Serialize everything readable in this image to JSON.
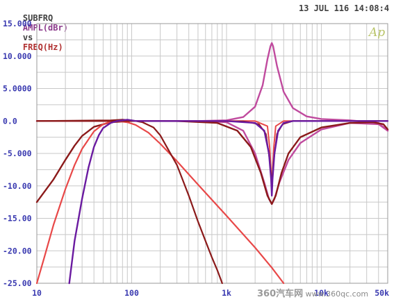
{
  "header": {
    "subfrq": "SUBFRQ",
    "y_quantity": "AMPL(dBr)",
    "vs": "vs",
    "x_quantity": "FREQ(Hz)",
    "date": "13 JUL 116 14:08:4",
    "colors": {
      "subfrq": "#404040",
      "y_quantity": "#8b3a8b",
      "vs": "#404040",
      "x_quantity": "#b03030"
    }
  },
  "logo": {
    "text": "Ap",
    "color": "#b9c46a"
  },
  "watermark": {
    "logo": "360汽车网",
    "url": "www.360qc.com"
  },
  "colors": {
    "grid": "#c8c8c8",
    "axis_labels": "#3a3ab0",
    "background": "#ffffff"
  },
  "chart_data": {
    "type": "line",
    "x_scale": "log",
    "xlim": [
      10,
      50000
    ],
    "ylim": [
      -25,
      15
    ],
    "grid": true,
    "y_ticks": [
      15,
      10,
      5,
      0,
      -5,
      -10,
      -15,
      -20,
      -25
    ],
    "y_tick_labels": [
      "15.000",
      "10.000",
      "5.0000",
      "0.0",
      "-5.000",
      "-10.00",
      "-15.00",
      "-20.00",
      "-25.00"
    ],
    "x_ticks": [
      10,
      100,
      1000,
      10000,
      50000
    ],
    "x_tick_labels": [
      "10",
      "100",
      "1k",
      "10k",
      "50k"
    ],
    "series": [
      {
        "color": "#c04a9e",
        "width": 2.4,
        "points": [
          [
            10,
            0
          ],
          [
            500,
            0
          ],
          [
            1000,
            0.1
          ],
          [
            1500,
            0.6
          ],
          [
            2000,
            2.2
          ],
          [
            2400,
            5.5
          ],
          [
            2700,
            9.5
          ],
          [
            2900,
            11.5
          ],
          [
            3000,
            12
          ],
          [
            3100,
            11.5
          ],
          [
            3400,
            8.5
          ],
          [
            4000,
            4.5
          ],
          [
            5000,
            2.0
          ],
          [
            7000,
            0.7
          ],
          [
            10000,
            0.3
          ],
          [
            20000,
            0.1
          ],
          [
            40000,
            -0.3
          ],
          [
            50000,
            -1.5
          ]
        ]
      },
      {
        "color": "#c04a9e",
        "width": 2.4,
        "points": [
          [
            10,
            0
          ],
          [
            500,
            0
          ],
          [
            1000,
            -0.2
          ],
          [
            1500,
            -1.5
          ],
          [
            2000,
            -5
          ],
          [
            2500,
            -9.5
          ],
          [
            2800,
            -12
          ],
          [
            3000,
            -12.8
          ],
          [
            3200,
            -12
          ],
          [
            3600,
            -9.5
          ],
          [
            4500,
            -6
          ],
          [
            6000,
            -3.4
          ],
          [
            10000,
            -1.3
          ],
          [
            20000,
            -0.3
          ],
          [
            40000,
            -0.5
          ],
          [
            50000,
            -1.5
          ]
        ]
      },
      {
        "color": "#8b1a1a",
        "width": 2.4,
        "points": [
          [
            10,
            -12.5
          ],
          [
            15,
            -9
          ],
          [
            20,
            -6
          ],
          [
            25,
            -3.8
          ],
          [
            30,
            -2.3
          ],
          [
            40,
            -0.9
          ],
          [
            60,
            -0.2
          ],
          [
            100,
            0
          ],
          [
            300,
            0
          ],
          [
            800,
            -0.3
          ],
          [
            1300,
            -1.5
          ],
          [
            1800,
            -4
          ],
          [
            2300,
            -8
          ],
          [
            2700,
            -11.5
          ],
          [
            3000,
            -12.8
          ],
          [
            3300,
            -11.5
          ],
          [
            3800,
            -8
          ],
          [
            4500,
            -5
          ],
          [
            6000,
            -2.5
          ],
          [
            10000,
            -1
          ],
          [
            20000,
            -0.3
          ],
          [
            35000,
            -0.2
          ],
          [
            45000,
            -0.5
          ],
          [
            50000,
            -1.3
          ]
        ]
      },
      {
        "color": "#e84848",
        "width": 2.2,
        "points": [
          [
            10,
            -25
          ],
          [
            12,
            -21
          ],
          [
            15,
            -16
          ],
          [
            20,
            -10.5
          ],
          [
            25,
            -6.8
          ],
          [
            30,
            -4.3
          ],
          [
            40,
            -1.6
          ],
          [
            50,
            -0.5
          ],
          [
            60,
            -0.1
          ],
          [
            70,
            0
          ],
          [
            90,
            -0.2
          ],
          [
            110,
            -0.6
          ],
          [
            150,
            -1.8
          ],
          [
            200,
            -3.5
          ],
          [
            300,
            -6.2
          ],
          [
            500,
            -9.8
          ],
          [
            1000,
            -14.6
          ],
          [
            2000,
            -19.5
          ],
          [
            3000,
            -22.6
          ],
          [
            4000,
            -25
          ]
        ]
      },
      {
        "color": "#e84848",
        "width": 2.0,
        "points": [
          [
            10,
            0
          ],
          [
            2000,
            0
          ],
          [
            2700,
            -0.8
          ],
          [
            2850,
            -4
          ],
          [
            2950,
            -8
          ],
          [
            3000,
            -10.5
          ],
          [
            3050,
            -8
          ],
          [
            3150,
            -4
          ],
          [
            3300,
            -0.8
          ],
          [
            4000,
            0
          ],
          [
            50000,
            0
          ]
        ]
      },
      {
        "color": "#8b1a1a",
        "width": 2.2,
        "points": [
          [
            10,
            0
          ],
          [
            60,
            0.1
          ],
          [
            80,
            0.2
          ],
          [
            100,
            0.1
          ],
          [
            130,
            -0.2
          ],
          [
            170,
            -1
          ],
          [
            200,
            -2.2
          ],
          [
            300,
            -6.8
          ],
          [
            400,
            -11.5
          ],
          [
            500,
            -15.5
          ],
          [
            600,
            -18.5
          ],
          [
            700,
            -21
          ],
          [
            800,
            -23
          ],
          [
            900,
            -25
          ]
        ]
      },
      {
        "color": "#8b1a1a",
        "width": 2.0,
        "points": [
          [
            10,
            0
          ],
          [
            1500,
            -0.05
          ],
          [
            2200,
            -0.5
          ],
          [
            2600,
            -2
          ],
          [
            2850,
            -6
          ],
          [
            3000,
            -9.5
          ],
          [
            3150,
            -6
          ],
          [
            3400,
            -2
          ],
          [
            3900,
            -0.5
          ],
          [
            5000,
            0
          ],
          [
            50000,
            0
          ]
        ]
      },
      {
        "color": "#6a1aa0",
        "width": 2.4,
        "points": [
          [
            22,
            -25
          ],
          [
            25,
            -18.5
          ],
          [
            30,
            -12
          ],
          [
            35,
            -7.2
          ],
          [
            40,
            -4
          ],
          [
            45,
            -2.2
          ],
          [
            50,
            -1.1
          ],
          [
            60,
            -0.3
          ],
          [
            70,
            0
          ],
          [
            90,
            0.2
          ],
          [
            110,
            0
          ],
          [
            200,
            0
          ],
          [
            1000,
            0
          ],
          [
            2000,
            -0.3
          ],
          [
            2500,
            -1.5
          ],
          [
            2800,
            -5
          ],
          [
            2950,
            -9
          ],
          [
            3000,
            -11.5
          ],
          [
            3050,
            -9
          ],
          [
            3200,
            -5
          ],
          [
            3500,
            -1.5
          ],
          [
            4000,
            -0.3
          ],
          [
            5000,
            0
          ],
          [
            50000,
            0
          ]
        ]
      }
    ]
  }
}
